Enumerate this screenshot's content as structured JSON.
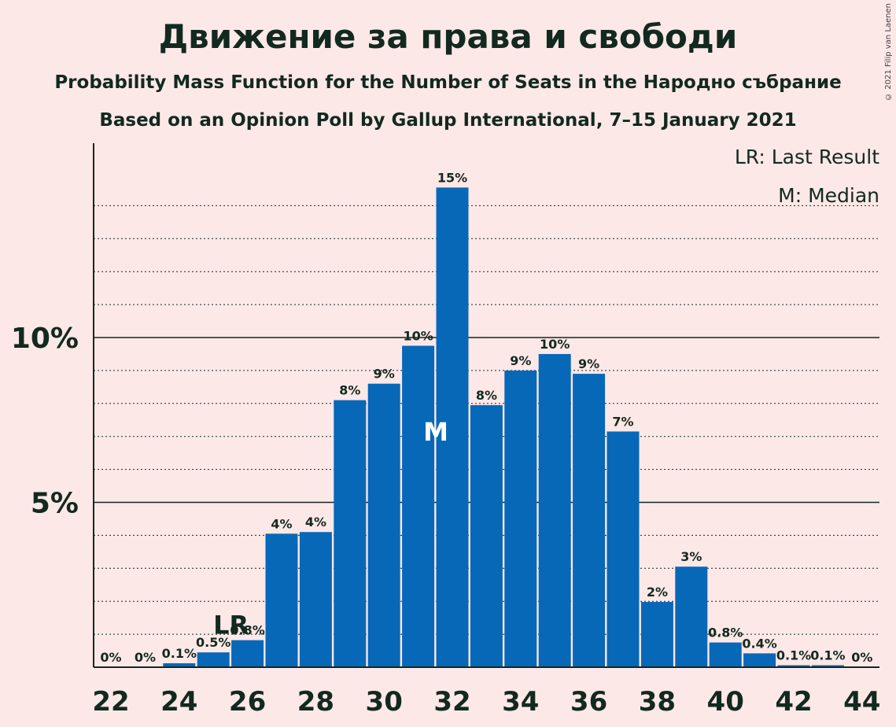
{
  "chart_data": {
    "type": "bar",
    "title": "Движение за права и свободи",
    "subtitle1": "Probability Mass Function for the Number of Seats in the Народно събрание",
    "subtitle2": "Based on an Opinion Poll by Gallup International, 7–15 January 2021",
    "copyright": "© 2021 Filip van Laenen",
    "legend": {
      "lr": "LR: Last Result",
      "m": "M: Median",
      "placement": "top-right"
    },
    "x": [
      22,
      23,
      24,
      25,
      26,
      27,
      28,
      29,
      30,
      31,
      32,
      33,
      34,
      35,
      36,
      37,
      38,
      39,
      40,
      41,
      42,
      43,
      44
    ],
    "values": [
      0,
      0,
      0.12,
      0.45,
      0.82,
      4.05,
      4.1,
      8.1,
      8.6,
      9.75,
      14.55,
      7.95,
      9.0,
      9.5,
      8.9,
      7.15,
      1.98,
      3.05,
      0.75,
      0.42,
      0.06,
      0.06,
      0
    ],
    "data_labels": [
      "0%",
      "0%",
      "0.1%",
      "0.5%",
      "0.8%",
      "4%",
      "4%",
      "8%",
      "9%",
      "10%",
      "15%",
      "8%",
      "9%",
      "10%",
      "9%",
      "7%",
      "2%",
      "3%",
      "0.8%",
      "0.4%",
      "0.1%",
      "0.1%",
      "0%"
    ],
    "x_ticks": [
      22,
      24,
      26,
      28,
      30,
      32,
      34,
      36,
      38,
      40,
      42,
      44
    ],
    "y_ticks": [
      {
        "value": 5,
        "label": "5%"
      },
      {
        "value": 10,
        "label": "10%"
      }
    ],
    "ylim": [
      0,
      15.9
    ],
    "last_result": 26,
    "last_result_label": "LR",
    "median": 32,
    "median_label": "M",
    "bar_color": "#0868b8",
    "grid": true
  }
}
